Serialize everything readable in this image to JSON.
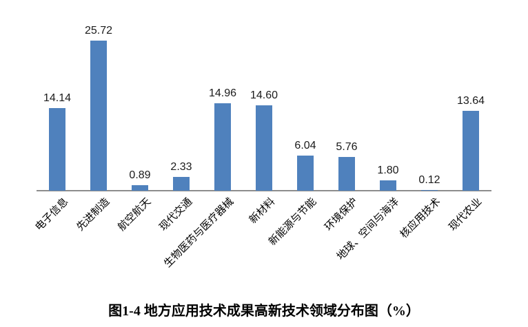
{
  "chart_data": {
    "type": "bar",
    "title": "图1-4 地方应用技术成果高新技术领域分布图（%）",
    "categories": [
      "电子信息",
      "先进制造",
      "航空航天",
      "现代交通",
      "生物医药与医疗器械",
      "新材料",
      "新能源与节能",
      "环境保护",
      "地球、空间与海洋",
      "核应用技术",
      "现代农业"
    ],
    "values": [
      14.14,
      25.72,
      0.89,
      2.33,
      14.96,
      14.6,
      6.04,
      5.76,
      1.8,
      0.12,
      13.64
    ],
    "value_labels": [
      "14.14",
      "25.72",
      "0.89",
      "2.33",
      "14.96",
      "14.60",
      "6.04",
      "5.76",
      "1.80",
      "0.12",
      "13.64"
    ],
    "xlabel": "",
    "ylabel": "",
    "ylim": [
      0,
      30
    ],
    "grid": false,
    "legend": false,
    "data_labels_position": "above-bars",
    "category_label_rotation_deg": -45,
    "bar_color": "#4F81BD",
    "axis_color": "#8C8C8C",
    "value_label_color": "#1A1A1A"
  }
}
